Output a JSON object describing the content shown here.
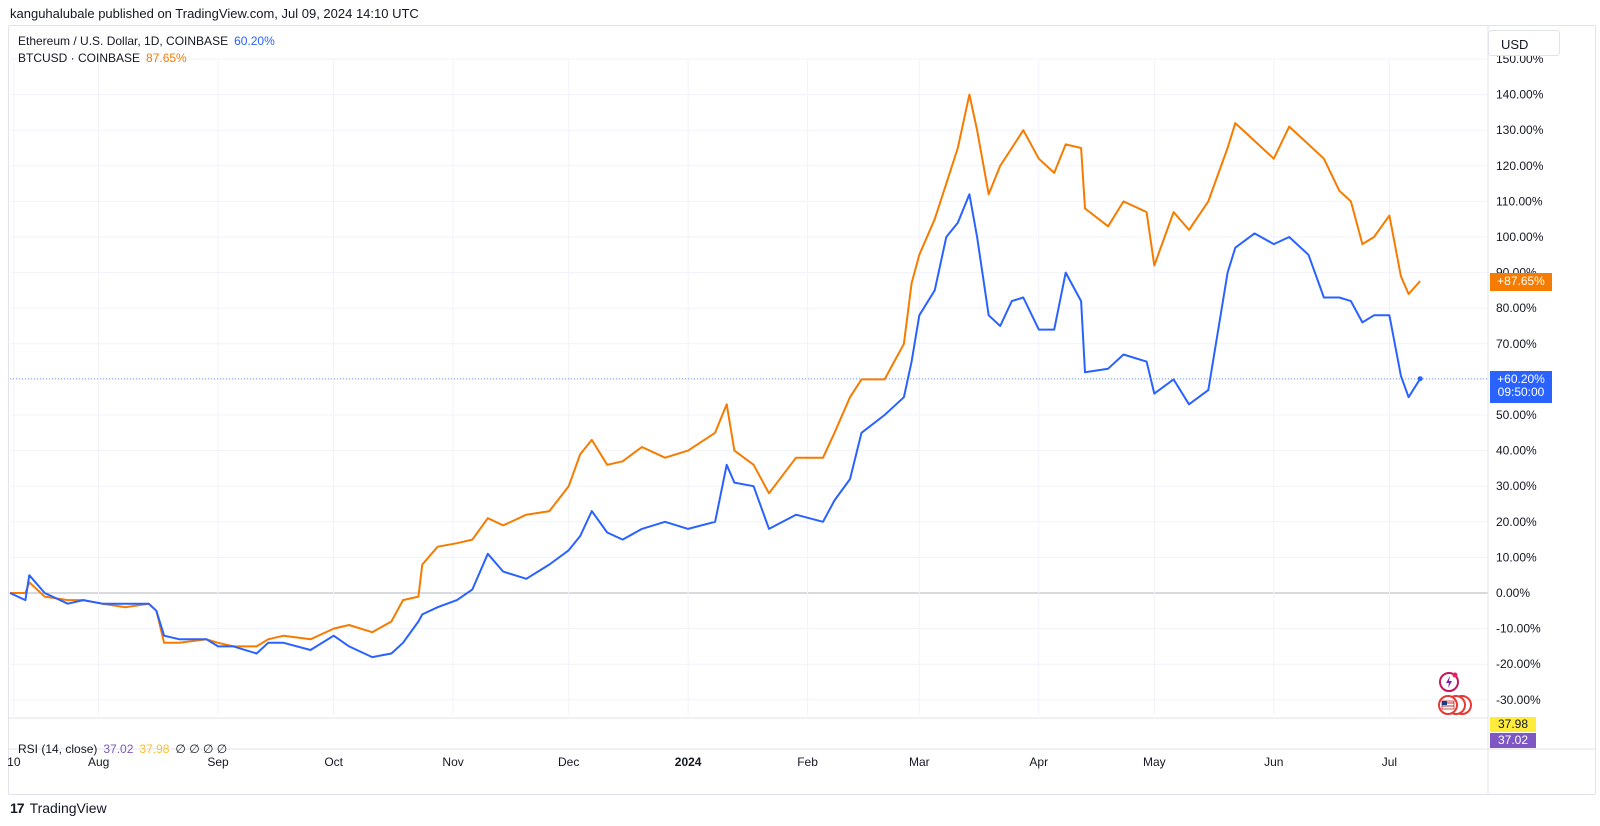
{
  "header": {
    "publisher_line": "kanguhalubale published on TradingView.com, Jul 09, 2024 14:10 UTC"
  },
  "legend": [
    {
      "name": "Ethereum / U.S. Dollar, 1D, COINBASE",
      "value": "60.20%",
      "color": "#2962ff"
    },
    {
      "name": "BTCUSD · COINBASE",
      "value": "87.65%",
      "color": "#f57c00"
    }
  ],
  "currency_button": "USD",
  "rsi": {
    "label": "RSI (14, close)",
    "v1": "37.02",
    "v2": "37.98",
    "nulls": "∅ ∅ ∅ ∅",
    "v1_color": "#7e57c2",
    "v2_color": "#fbc02d"
  },
  "price_badges": {
    "btc": "+87.65%",
    "eth": "+60.20%",
    "eth_time": "09:50:00",
    "rsi_a": "37.98",
    "rsi_b": "37.02"
  },
  "footer": {
    "brand": "TradingView",
    "logo_text": "17"
  },
  "icons": {
    "sparkle": "bolt-circle-icon",
    "flag": "us-flag-events-icon"
  },
  "chart_data": {
    "type": "line",
    "ylabel": "",
    "ylim": [
      -35,
      150
    ],
    "y_ticks": [
      "150.00%",
      "140.00%",
      "130.00%",
      "120.00%",
      "110.00%",
      "100.00%",
      "90.00%",
      "80.00%",
      "70.00%",
      "60.00%",
      "50.00%",
      "40.00%",
      "30.00%",
      "20.00%",
      "10.00%",
      "0.00%",
      "-10.00%",
      "-20.00%",
      "-30.00%"
    ],
    "y_tick_values": [
      150,
      140,
      130,
      120,
      110,
      100,
      90,
      80,
      70,
      60,
      50,
      40,
      30,
      20,
      10,
      0,
      -10,
      -20,
      -30
    ],
    "x_ticks": [
      {
        "label": "10",
        "date": "2023-07-10"
      },
      {
        "label": "Aug",
        "date": "2023-08-01"
      },
      {
        "label": "Sep",
        "date": "2023-09-01"
      },
      {
        "label": "Oct",
        "date": "2023-10-01"
      },
      {
        "label": "Nov",
        "date": "2023-11-01"
      },
      {
        "label": "Dec",
        "date": "2023-12-01"
      },
      {
        "label": "2024",
        "date": "2024-01-01",
        "bold": true
      },
      {
        "label": "Feb",
        "date": "2024-02-01"
      },
      {
        "label": "Mar",
        "date": "2024-03-01"
      },
      {
        "label": "Apr",
        "date": "2024-04-01"
      },
      {
        "label": "May",
        "date": "2024-05-01"
      },
      {
        "label": "Jun",
        "date": "2024-06-01"
      },
      {
        "label": "Jul",
        "date": "2024-07-01"
      }
    ],
    "grid": true,
    "series": [
      {
        "name": "BTCUSD · COINBASE",
        "color": "#f57c00",
        "points": [
          [
            "2023-07-09",
            0
          ],
          [
            "2023-07-13",
            0
          ],
          [
            "2023-07-14",
            3
          ],
          [
            "2023-07-18",
            -1
          ],
          [
            "2023-07-24",
            -2
          ],
          [
            "2023-07-28",
            -2
          ],
          [
            "2023-08-02",
            -3
          ],
          [
            "2023-08-08",
            -4
          ],
          [
            "2023-08-14",
            -3
          ],
          [
            "2023-08-16",
            -5
          ],
          [
            "2023-08-18",
            -14
          ],
          [
            "2023-08-22",
            -14
          ],
          [
            "2023-08-29",
            -13
          ],
          [
            "2023-09-01",
            -14
          ],
          [
            "2023-09-05",
            -15
          ],
          [
            "2023-09-11",
            -15
          ],
          [
            "2023-09-14",
            -13
          ],
          [
            "2023-09-18",
            -12
          ],
          [
            "2023-09-25",
            -13
          ],
          [
            "2023-10-01",
            -10
          ],
          [
            "2023-10-05",
            -9
          ],
          [
            "2023-10-11",
            -11
          ],
          [
            "2023-10-16",
            -8
          ],
          [
            "2023-10-19",
            -2
          ],
          [
            "2023-10-23",
            -1
          ],
          [
            "2023-10-24",
            8
          ],
          [
            "2023-10-28",
            13
          ],
          [
            "2023-11-02",
            14
          ],
          [
            "2023-11-06",
            15
          ],
          [
            "2023-11-10",
            21
          ],
          [
            "2023-11-14",
            19
          ],
          [
            "2023-11-20",
            22
          ],
          [
            "2023-11-26",
            23
          ],
          [
            "2023-12-01",
            30
          ],
          [
            "2023-12-04",
            39
          ],
          [
            "2023-12-07",
            43
          ],
          [
            "2023-12-11",
            36
          ],
          [
            "2023-12-15",
            37
          ],
          [
            "2023-12-20",
            41
          ],
          [
            "2023-12-26",
            38
          ],
          [
            "2024-01-01",
            40
          ],
          [
            "2024-01-08",
            45
          ],
          [
            "2024-01-11",
            53
          ],
          [
            "2024-01-13",
            40
          ],
          [
            "2024-01-18",
            36
          ],
          [
            "2024-01-22",
            28
          ],
          [
            "2024-01-29,",
            38
          ],
          [
            "2024-02-05",
            38
          ],
          [
            "2024-02-08",
            45
          ],
          [
            "2024-02-12",
            55
          ],
          [
            "2024-02-15",
            60
          ],
          [
            "2024-02-21",
            60
          ],
          [
            "2024-02-26",
            70
          ],
          [
            "2024-02-28",
            87
          ],
          [
            "2024-03-01",
            95
          ],
          [
            "2024-03-05",
            105
          ],
          [
            "2024-03-08",
            115
          ],
          [
            "2024-03-11",
            125
          ],
          [
            "2024-03-14",
            140
          ],
          [
            "2024-03-16",
            130
          ],
          [
            "2024-03-19",
            112
          ],
          [
            "2024-03-22",
            120
          ],
          [
            "2024-03-25",
            125
          ],
          [
            "2024-03-28",
            130
          ],
          [
            "2024-04-01",
            122
          ],
          [
            "2024-04-05",
            118
          ],
          [
            "2024-04-08",
            126
          ],
          [
            "2024-04-12",
            125
          ],
          [
            "2024-04-13",
            108
          ],
          [
            "2024-04-19",
            103
          ],
          [
            "2024-04-23",
            110
          ],
          [
            "2024-04-29",
            107
          ],
          [
            "2024-05-01",
            92
          ],
          [
            "2024-05-06",
            107
          ],
          [
            "2024-05-10",
            102
          ],
          [
            "2024-05-15",
            110
          ],
          [
            "2024-05-20",
            125
          ],
          [
            "2024-05-22",
            132
          ],
          [
            "2024-05-27",
            127
          ],
          [
            "2024-06-01",
            122
          ],
          [
            "2024-06-05",
            131
          ],
          [
            "2024-06-10",
            126
          ],
          [
            "2024-06-14",
            122
          ],
          [
            "2024-06-18",
            113
          ],
          [
            "2024-06-21",
            110
          ],
          [
            "2024-06-24",
            98
          ],
          [
            "2024-06-27",
            100
          ],
          [
            "2024-07-01",
            106
          ],
          [
            "2024-07-04",
            89
          ],
          [
            "2024-07-06",
            84
          ],
          [
            "2024-07-09",
            87.65
          ]
        ]
      },
      {
        "name": "Ethereum / U.S. Dollar, 1D, COINBASE",
        "color": "#2962ff",
        "points": [
          [
            "2023-07-09",
            0
          ],
          [
            "2023-07-13",
            -2
          ],
          [
            "2023-07-14",
            5
          ],
          [
            "2023-07-18",
            0
          ],
          [
            "2023-07-24",
            -3
          ],
          [
            "2023-07-28",
            -2
          ],
          [
            "2023-08-02",
            -3
          ],
          [
            "2023-08-08",
            -3
          ],
          [
            "2023-08-14",
            -3
          ],
          [
            "2023-08-16",
            -5
          ],
          [
            "2023-08-18",
            -12
          ],
          [
            "2023-08-22",
            -13
          ],
          [
            "2023-08-29",
            -13
          ],
          [
            "2023-09-01",
            -15
          ],
          [
            "2023-09-05",
            -15
          ],
          [
            "2023-09-11",
            -17
          ],
          [
            "2023-09-14",
            -14
          ],
          [
            "2023-09-18",
            -14
          ],
          [
            "2023-09-25",
            -16
          ],
          [
            "2023-10-01",
            -12
          ],
          [
            "2023-10-05",
            -15
          ],
          [
            "2023-10-11",
            -18
          ],
          [
            "2023-10-16",
            -17
          ],
          [
            "2023-10-19",
            -14
          ],
          [
            "2023-10-23",
            -8
          ],
          [
            "2023-10-24",
            -6
          ],
          [
            "2023-10-28",
            -4
          ],
          [
            "2023-11-02",
            -2
          ],
          [
            "2023-11-06",
            1
          ],
          [
            "2023-11-10",
            11
          ],
          [
            "2023-11-14",
            6
          ],
          [
            "2023-11-20",
            4
          ],
          [
            "2023-11-26",
            8
          ],
          [
            "2023-12-01",
            12
          ],
          [
            "2023-12-04",
            16
          ],
          [
            "2023-12-07",
            23
          ],
          [
            "2023-12-11",
            17
          ],
          [
            "2023-12-15",
            15
          ],
          [
            "2023-12-20",
            18
          ],
          [
            "2023-12-26",
            20
          ],
          [
            "2024-01-01",
            18
          ],
          [
            "2024-01-08",
            20
          ],
          [
            "2024-01-11",
            36
          ],
          [
            "2024-01-13",
            31
          ],
          [
            "2024-01-18",
            30
          ],
          [
            "2024-01-22",
            18
          ],
          [
            "2024-01-29",
            22
          ],
          [
            "2024-02-05",
            20
          ],
          [
            "2024-02-08",
            26
          ],
          [
            "2024-02-12",
            32
          ],
          [
            "2024-02-15",
            45
          ],
          [
            "2024-02-21",
            50
          ],
          [
            "2024-02-26",
            55
          ],
          [
            "2024-02-28",
            65
          ],
          [
            "2024-03-01",
            78
          ],
          [
            "2024-03-05",
            85
          ],
          [
            "2024-03-08",
            100
          ],
          [
            "2024-03-11",
            104
          ],
          [
            "2024-03-14",
            112
          ],
          [
            "2024-03-16",
            100
          ],
          [
            "2024-03-19",
            78
          ],
          [
            "2024-03-22",
            75
          ],
          [
            "2024-03-25",
            82
          ],
          [
            "2024-03-28",
            83
          ],
          [
            "2024-04-01",
            74
          ],
          [
            "2024-04-05",
            74
          ],
          [
            "2024-04-08",
            90
          ],
          [
            "2024-04-12",
            82
          ],
          [
            "2024-04-13",
            62
          ],
          [
            "2024-04-19",
            63
          ],
          [
            "2024-04-23",
            67
          ],
          [
            "2024-04-29",
            65
          ],
          [
            "2024-05-01",
            56
          ],
          [
            "2024-05-06",
            60
          ],
          [
            "2024-05-10",
            53
          ],
          [
            "2024-05-15",
            57
          ],
          [
            "2024-05-20",
            90
          ],
          [
            "2024-05-22",
            97
          ],
          [
            "2024-05-27",
            101
          ],
          [
            "2024-06-01",
            98
          ],
          [
            "2024-06-05",
            100
          ],
          [
            "2024-06-10",
            95
          ],
          [
            "2024-06-14",
            83
          ],
          [
            "2024-06-18",
            83
          ],
          [
            "2024-06-21",
            82
          ],
          [
            "2024-06-24",
            76
          ],
          [
            "2024-06-27",
            78
          ],
          [
            "2024-07-01",
            78
          ],
          [
            "2024-07-04",
            61
          ],
          [
            "2024-07-06",
            55
          ],
          [
            "2024-07-09",
            60.2
          ]
        ]
      }
    ]
  }
}
